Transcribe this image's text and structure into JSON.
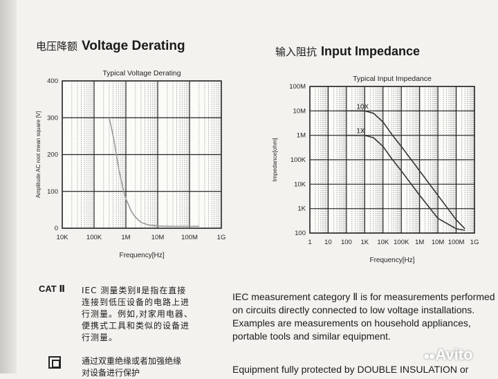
{
  "left_section": {
    "heading_cn": "电压降额",
    "heading_en": "Voltage Derating"
  },
  "right_section": {
    "heading_cn": "输入阻抗",
    "heading_en": "Input Impedance"
  },
  "chart_data": [
    {
      "type": "line",
      "title": "Typical Voltage Derating",
      "xlabel": "Frequency[Hz]",
      "ylabel": "Amplitude AC root mean square [V]",
      "xscale": "log",
      "x_tick_labels": [
        "10K",
        "100K",
        "1M",
        "10M",
        "100M",
        "1G"
      ],
      "x_ticks": [
        10000,
        100000,
        1000000,
        10000000,
        100000000,
        1000000000
      ],
      "xlim": [
        10000,
        1000000000
      ],
      "y_tick_labels": [
        "0",
        "100",
        "200",
        "300",
        "400"
      ],
      "ylim": [
        0,
        400
      ],
      "grid": true,
      "series": [
        {
          "x": [
            300000,
            400000,
            500000,
            600000,
            800000,
            1000000,
            1500000,
            2000000,
            3000000,
            5000000,
            10000000,
            30000000,
            100000000,
            200000000
          ],
          "y": [
            300,
            250,
            200,
            160,
            110,
            80,
            45,
            30,
            16,
            9,
            6,
            5,
            5,
            5
          ]
        }
      ]
    },
    {
      "type": "line",
      "title": "Typical Input Impedance",
      "xlabel": "Frequency[Hz]",
      "ylabel": "Impedance[ohm]",
      "xscale": "log",
      "yscale": "log",
      "x_tick_labels": [
        "1",
        "10",
        "100",
        "1K",
        "10K",
        "100K",
        "1M",
        "10M",
        "100M",
        "1G"
      ],
      "x_ticks": [
        1,
        10,
        100,
        1000,
        10000,
        100000,
        1000000,
        10000000,
        100000000,
        1000000000
      ],
      "xlim": [
        1,
        1000000000
      ],
      "y_tick_labels": [
        "100",
        "1K",
        "10K",
        "100K",
        "1M",
        "10M",
        "100M"
      ],
      "y_ticks": [
        100,
        1000,
        10000,
        100000,
        1000000,
        10000000,
        100000000
      ],
      "ylim": [
        100,
        100000000
      ],
      "grid": true,
      "series": [
        {
          "name": "10X",
          "x": [
            100,
            1000,
            3000,
            10000,
            30000,
            100000,
            1000000,
            10000000,
            100000000,
            300000000
          ],
          "y": [
            10000000,
            10000000,
            8000000,
            3500000,
            1100000,
            350000,
            35000,
            3500,
            350,
            150
          ]
        },
        {
          "name": "1X",
          "x": [
            100,
            1000,
            3000,
            10000,
            30000,
            100000,
            1000000,
            10000000,
            100000000,
            300000000
          ],
          "y": [
            1000000,
            1000000,
            800000,
            350000,
            110000,
            35000,
            3500,
            400,
            150,
            130
          ]
        }
      ]
    }
  ],
  "cat": {
    "label": "CAT Ⅱ",
    "cn_lines": [
      "IEC 测量类别Ⅱ是指在直接",
      "连接到低压设备的电路上进",
      "行测量。例如,对家用电器、",
      "便携式工具和类似的设备进",
      "行测量。"
    ],
    "en_lines": [
      "IEC measurement category Ⅱ is for measurements performed",
      "on circuits directly connected to low voltage installations.",
      "Examples are measurements on household appliances,",
      "portable tools and similar equipment."
    ]
  },
  "bottom": {
    "cn_lines": [
      "通过双重绝缘或者加强绝缘",
      "对设备进行保护"
    ],
    "en_line": "Equipment fully protected by DOUBLE INSULATION or"
  },
  "watermark": {
    "text": "Avito"
  }
}
